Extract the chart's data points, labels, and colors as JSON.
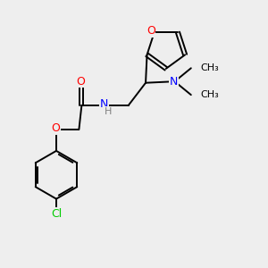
{
  "background_color": "#eeeeee",
  "bond_color": "#000000",
  "atom_colors": {
    "O": "#ff0000",
    "N": "#0000ff",
    "Cl": "#00cc00",
    "C": "#000000",
    "H": "#808080"
  },
  "figsize": [
    3.0,
    3.0
  ],
  "dpi": 100
}
